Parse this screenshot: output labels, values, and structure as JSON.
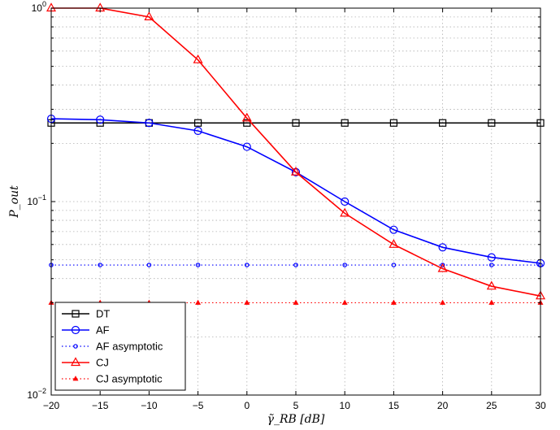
{
  "chart_data": {
    "type": "line",
    "x": [
      -20,
      -15,
      -10,
      -5,
      0,
      5,
      10,
      15,
      20,
      25,
      30
    ],
    "xlim": [
      -20,
      30
    ],
    "ylim": [
      0.01,
      1
    ],
    "yscale": "log",
    "grid": true,
    "legend_position": "bottom-left",
    "xlabel": "γ̃_RB [dB]",
    "ylabel": "P_out",
    "x_tick_labels": [
      "−20",
      "−15",
      "−10",
      "−5",
      "0",
      "5",
      "10",
      "15",
      "20",
      "25",
      "30"
    ],
    "y_tick_labels": [
      {
        "base": "10",
        "exp": "0"
      },
      {
        "base": "10",
        "exp": "−1"
      },
      {
        "base": "10",
        "exp": "−2"
      }
    ],
    "series": [
      {
        "name": "DT",
        "color": "#000000",
        "marker": "square",
        "dash": "solid",
        "values": [
          0.255,
          0.255,
          0.255,
          0.255,
          0.255,
          0.255,
          0.255,
          0.255,
          0.255,
          0.255,
          0.255
        ]
      },
      {
        "name": "AF",
        "color": "#0000ff",
        "marker": "circle",
        "dash": "solid",
        "values": [
          0.268,
          0.265,
          0.255,
          0.232,
          0.192,
          0.142,
          0.1,
          0.0715,
          0.058,
          0.0515,
          0.048
        ]
      },
      {
        "name": "AF asymptotic",
        "color": "#0000ff",
        "marker": "circle-small",
        "dash": "dotted",
        "values": [
          0.047,
          0.047,
          0.047,
          0.047,
          0.047,
          0.047,
          0.047,
          0.047,
          0.047,
          0.047,
          0.047
        ]
      },
      {
        "name": "CJ",
        "color": "#ff0000",
        "marker": "triangle",
        "dash": "solid",
        "values": [
          1.0,
          1.0,
          0.9,
          0.54,
          0.27,
          0.142,
          0.087,
          0.06,
          0.045,
          0.0365,
          0.0325
        ]
      },
      {
        "name": "CJ asymptotic",
        "color": "#ff0000",
        "marker": "triangle-small",
        "dash": "dotted",
        "values": [
          0.03,
          0.03,
          0.03,
          0.03,
          0.03,
          0.03,
          0.03,
          0.03,
          0.03,
          0.03,
          0.03
        ]
      }
    ]
  }
}
